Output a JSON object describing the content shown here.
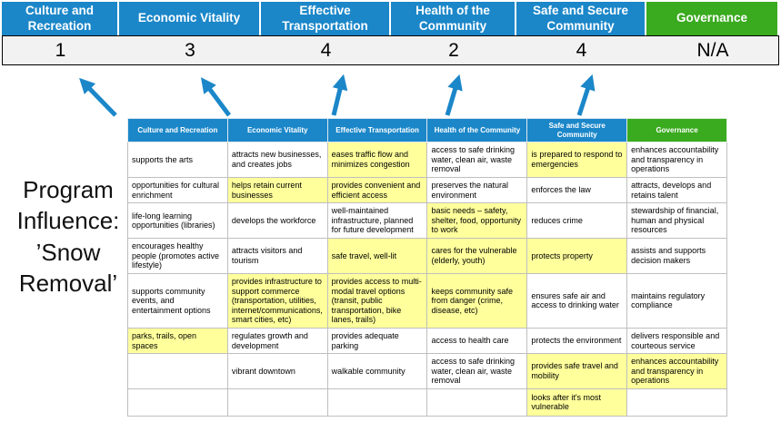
{
  "colors": {
    "pillar_blue": "#1b87c9",
    "governance_green": "#3aaa1f",
    "highlight_yellow": "#ffff9c",
    "score_row_gray": "#f2f2f2",
    "arrow_blue": "#1b87c9"
  },
  "scoreboard": {
    "columns": [
      {
        "label": "Culture and Recreation",
        "score": "1",
        "theme": "blue"
      },
      {
        "label": "Economic Vitality",
        "score": "3",
        "theme": "blue"
      },
      {
        "label": "Effective Transportation",
        "score": "4",
        "theme": "blue"
      },
      {
        "label": "Health of the Community",
        "score": "2",
        "theme": "blue"
      },
      {
        "label": "Safe and Secure Community",
        "score": "4",
        "theme": "blue"
      },
      {
        "label": "Governance",
        "score": "N/A",
        "theme": "green"
      }
    ]
  },
  "program_label": "Program\nInfluence:\n’Snow\nRemoval’",
  "matrix": {
    "headers": [
      {
        "label": "Culture and Recreation",
        "theme": "blue"
      },
      {
        "label": "Economic Vitality",
        "theme": "blue"
      },
      {
        "label": "Effective Transportation",
        "theme": "blue"
      },
      {
        "label": "Health of the Community",
        "theme": "blue"
      },
      {
        "label": "Safe and Secure Community",
        "theme": "blue"
      },
      {
        "label": "Governance",
        "theme": "green"
      }
    ],
    "rows": [
      [
        {
          "text": "supports the arts",
          "highlight": false
        },
        {
          "text": "attracts new businesses, and creates jobs",
          "highlight": false
        },
        {
          "text": "eases traffic flow and minimizes congestion",
          "highlight": true
        },
        {
          "text": "access to safe drinking water, clean air, waste removal",
          "highlight": false
        },
        {
          "text": "is prepared to respond to emergencies",
          "highlight": true
        },
        {
          "text": "enhances accountability and transparency in operations",
          "highlight": false
        }
      ],
      [
        {
          "text": "opportunities for cultural enrichment",
          "highlight": false
        },
        {
          "text": "helps retain current businesses",
          "highlight": true
        },
        {
          "text": "provides convenient and efficient access",
          "highlight": true
        },
        {
          "text": "preserves the natural environment",
          "highlight": false
        },
        {
          "text": "enforces the law",
          "highlight": false
        },
        {
          "text": "attracts, develops and retains talent",
          "highlight": false
        }
      ],
      [
        {
          "text": "life-long learning opportunities (libraries)",
          "highlight": false
        },
        {
          "text": "develops the workforce",
          "highlight": false
        },
        {
          "text": "well-maintained infrastructure, planned for future development",
          "highlight": false
        },
        {
          "text": "basic needs – safety, shelter, food, opportunity to work",
          "highlight": true
        },
        {
          "text": "reduces crime",
          "highlight": false
        },
        {
          "text": "stewardship of financial, human and physical resources",
          "highlight": false
        }
      ],
      [
        {
          "text": "encourages healthy people (promotes active lifestyle)",
          "highlight": false
        },
        {
          "text": "attracts visitors and tourism",
          "highlight": false
        },
        {
          "text": "safe travel, well-lit",
          "highlight": true
        },
        {
          "text": "cares for the vulnerable (elderly, youth)",
          "highlight": true
        },
        {
          "text": "protects property",
          "highlight": true
        },
        {
          "text": "assists and supports decision makers",
          "highlight": false
        }
      ],
      [
        {
          "text": "supports community events, and entertainment options",
          "highlight": false
        },
        {
          "text": "provides infrastructure to support commerce (transportation, utilities, internet/communications, smart cities, etc)",
          "highlight": true
        },
        {
          "text": "provides access to multi-modal travel options (transit, public transportation, bike lanes, trails)",
          "highlight": true
        },
        {
          "text": "keeps community safe from danger (crime, disease, etc)",
          "highlight": true
        },
        {
          "text": "ensures safe air and access to drinking water",
          "highlight": false
        },
        {
          "text": "maintains regulatory compliance",
          "highlight": false
        }
      ],
      [
        {
          "text": "parks, trails, open spaces",
          "highlight": true
        },
        {
          "text": "regulates growth and development",
          "highlight": false
        },
        {
          "text": "provides adequate parking",
          "highlight": false
        },
        {
          "text": "access to health care",
          "highlight": false
        },
        {
          "text": "protects the environment",
          "highlight": false
        },
        {
          "text": "delivers responsible and courteous service",
          "highlight": false
        }
      ],
      [
        {
          "text": "",
          "highlight": false
        },
        {
          "text": "vibrant downtown",
          "highlight": false
        },
        {
          "text": "walkable community",
          "highlight": false
        },
        {
          "text": "access to safe drinking water, clean air, waste removal",
          "highlight": false
        },
        {
          "text": "provides safe travel and mobility",
          "highlight": true
        },
        {
          "text": "enhances accountability and transparency in operations",
          "highlight": true
        }
      ],
      [
        {
          "text": "",
          "highlight": false
        },
        {
          "text": "",
          "highlight": false
        },
        {
          "text": "",
          "highlight": false
        },
        {
          "text": "",
          "highlight": false
        },
        {
          "text": "looks after it's most vulnerable",
          "highlight": true
        },
        {
          "text": "",
          "highlight": false
        }
      ]
    ]
  }
}
